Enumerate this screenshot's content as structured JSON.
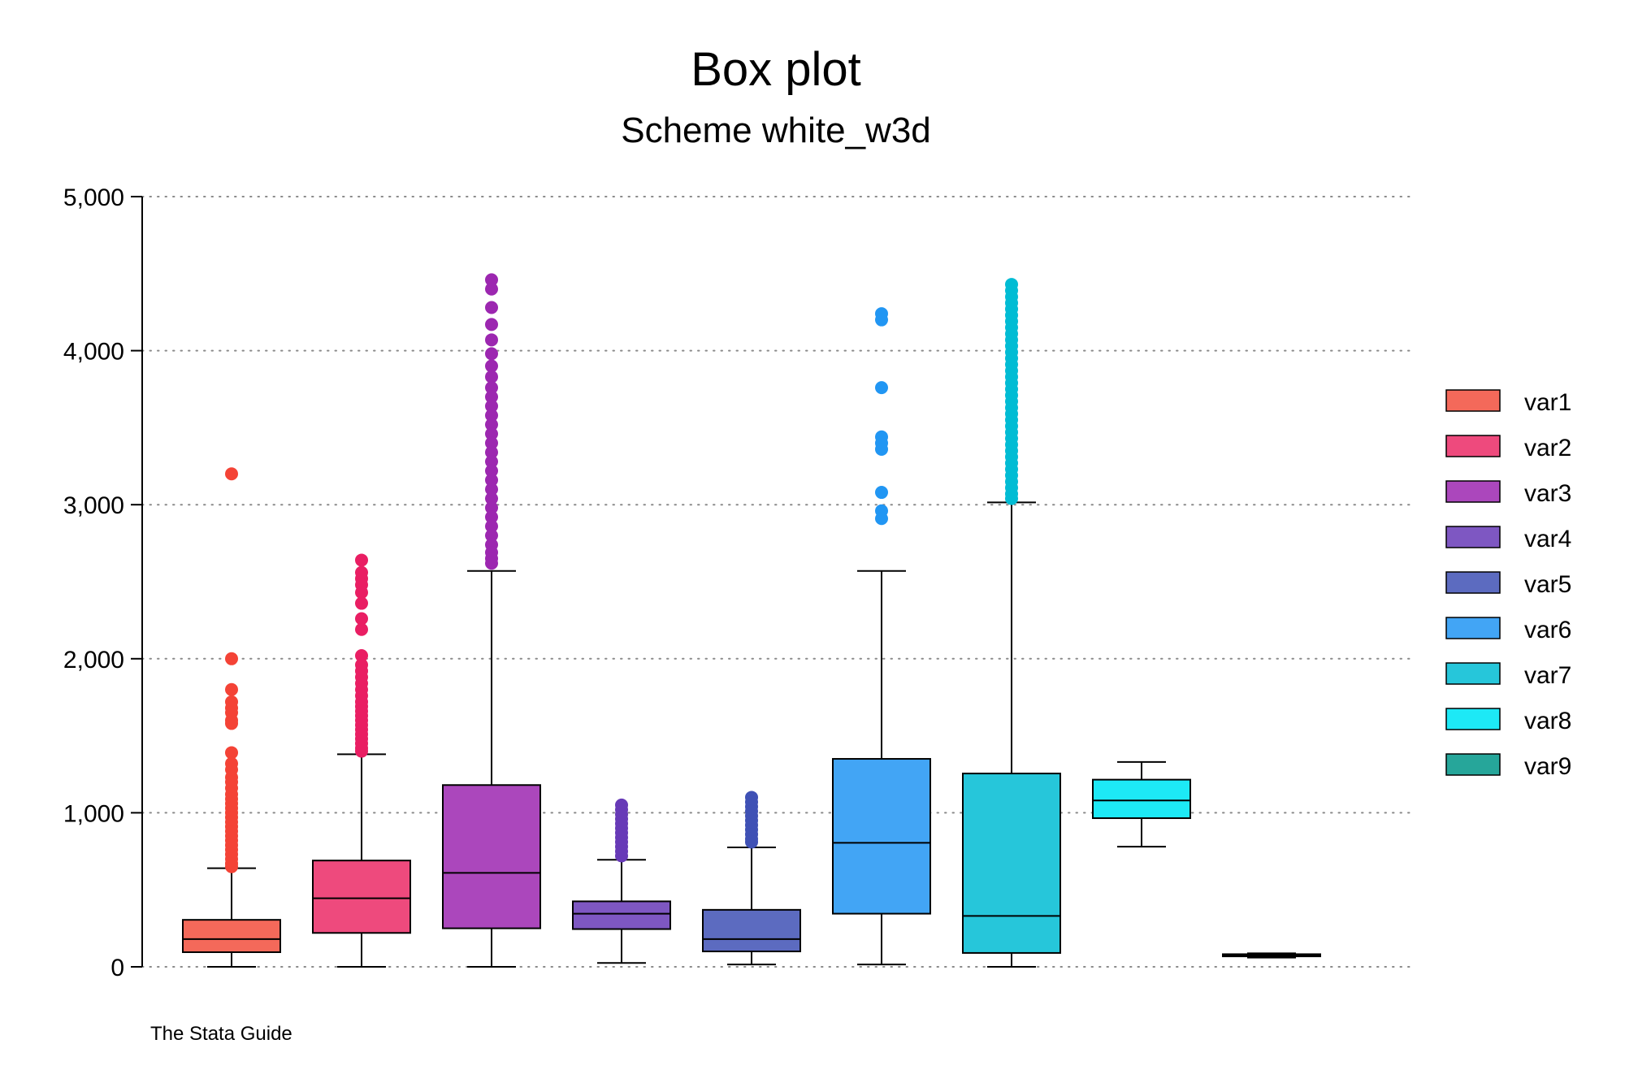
{
  "chart_data": {
    "type": "box",
    "title": "Box plot",
    "subtitle": "Scheme white_w3d",
    "note": "The Stata Guide",
    "ylim": [
      0,
      5000
    ],
    "yticks": [
      0,
      1000,
      2000,
      3000,
      4000,
      5000
    ],
    "ytick_labels": [
      "0",
      "1,000",
      "2,000",
      "3,000",
      "4,000",
      "5,000"
    ],
    "grid": true,
    "legend_position": "right",
    "series": [
      {
        "name": "var1",
        "color": "#f4695a",
        "outlier_color": "#f44336",
        "whisker_low": 0,
        "q1": 95,
        "median": 180,
        "q3": 305,
        "whisker_high": 640,
        "outliers": [
          3200,
          2000,
          1800,
          1720,
          1680,
          1650,
          1600,
          1580,
          1390,
          1320,
          1280,
          1230,
          1200,
          1160,
          1120,
          1090,
          1060,
          1030,
          1000,
          970,
          940,
          910,
          880,
          850,
          820,
          790,
          760,
          730,
          700,
          670,
          650
        ]
      },
      {
        "name": "var2",
        "color": "#ee4a7d",
        "outlier_color": "#e91e63",
        "whisker_low": 0,
        "q1": 220,
        "median": 445,
        "q3": 690,
        "whisker_high": 1380,
        "outliers": [
          2640,
          2560,
          2520,
          2480,
          2430,
          2360,
          2260,
          2190,
          2020,
          1960,
          1920,
          1880,
          1840,
          1800,
          1760,
          1720,
          1690,
          1660,
          1630,
          1600,
          1570,
          1540,
          1510,
          1480,
          1450,
          1420,
          1400
        ]
      },
      {
        "name": "var3",
        "color": "#ab47bc",
        "outlier_color": "#9c27b0",
        "whisker_low": 0,
        "q1": 250,
        "median": 610,
        "q3": 1180,
        "whisker_high": 2570,
        "outliers": [
          4460,
          4400,
          4280,
          4170,
          4070,
          3980,
          3900,
          3830,
          3760,
          3700,
          3640,
          3580,
          3520,
          3460,
          3400,
          3340,
          3280,
          3220,
          3160,
          3100,
          3040,
          2980,
          2920,
          2860,
          2800,
          2740,
          2690,
          2650,
          2620
        ]
      },
      {
        "name": "var4",
        "color": "#7e57c2",
        "outlier_color": "#673ab7",
        "whisker_low": 25,
        "q1": 245,
        "median": 345,
        "q3": 425,
        "whisker_high": 695,
        "outliers": [
          1050,
          1020,
          990,
          960,
          930,
          900,
          870,
          840,
          810,
          780,
          750,
          720
        ]
      },
      {
        "name": "var5",
        "color": "#5c6bc0",
        "outlier_color": "#3f51b5",
        "whisker_low": 15,
        "q1": 100,
        "median": 180,
        "q3": 370,
        "whisker_high": 775,
        "outliers": [
          1100,
          1070,
          1040,
          1010,
          980,
          950,
          920,
          890,
          860,
          830,
          810
        ]
      },
      {
        "name": "var6",
        "color": "#42a5f5",
        "outlier_color": "#2196f3",
        "whisker_low": 15,
        "q1": 345,
        "median": 805,
        "q3": 1350,
        "whisker_high": 2570,
        "outliers": [
          4240,
          4200,
          3760,
          3440,
          3400,
          3360,
          3080,
          2960,
          2910
        ]
      },
      {
        "name": "var7",
        "color": "#26c6da",
        "outlier_color": "#00bcd4",
        "whisker_low": 0,
        "q1": 90,
        "median": 330,
        "q3": 1255,
        "whisker_high": 3015,
        "outliers": [
          4430,
          4390,
          4350,
          4310,
          4270,
          4230,
          4190,
          4150,
          4110,
          4070,
          4030,
          3990,
          3950,
          3910,
          3870,
          3830,
          3790,
          3750,
          3710,
          3670,
          3630,
          3590,
          3550,
          3510,
          3470,
          3430,
          3390,
          3350,
          3310,
          3270,
          3230,
          3190,
          3150,
          3110,
          3070,
          3040
        ]
      },
      {
        "name": "var8",
        "color": "#1de9f6",
        "outlier_color": "#18ffff",
        "whisker_low": 780,
        "q1": 965,
        "median": 1080,
        "q3": 1215,
        "whisker_high": 1330,
        "outliers": []
      },
      {
        "name": "var9",
        "color": "#26a69a",
        "outlier_color": "#009688",
        "whisker_low": 60,
        "q1": 68,
        "median": 75,
        "q3": 82,
        "whisker_high": 88,
        "outliers": []
      }
    ]
  }
}
